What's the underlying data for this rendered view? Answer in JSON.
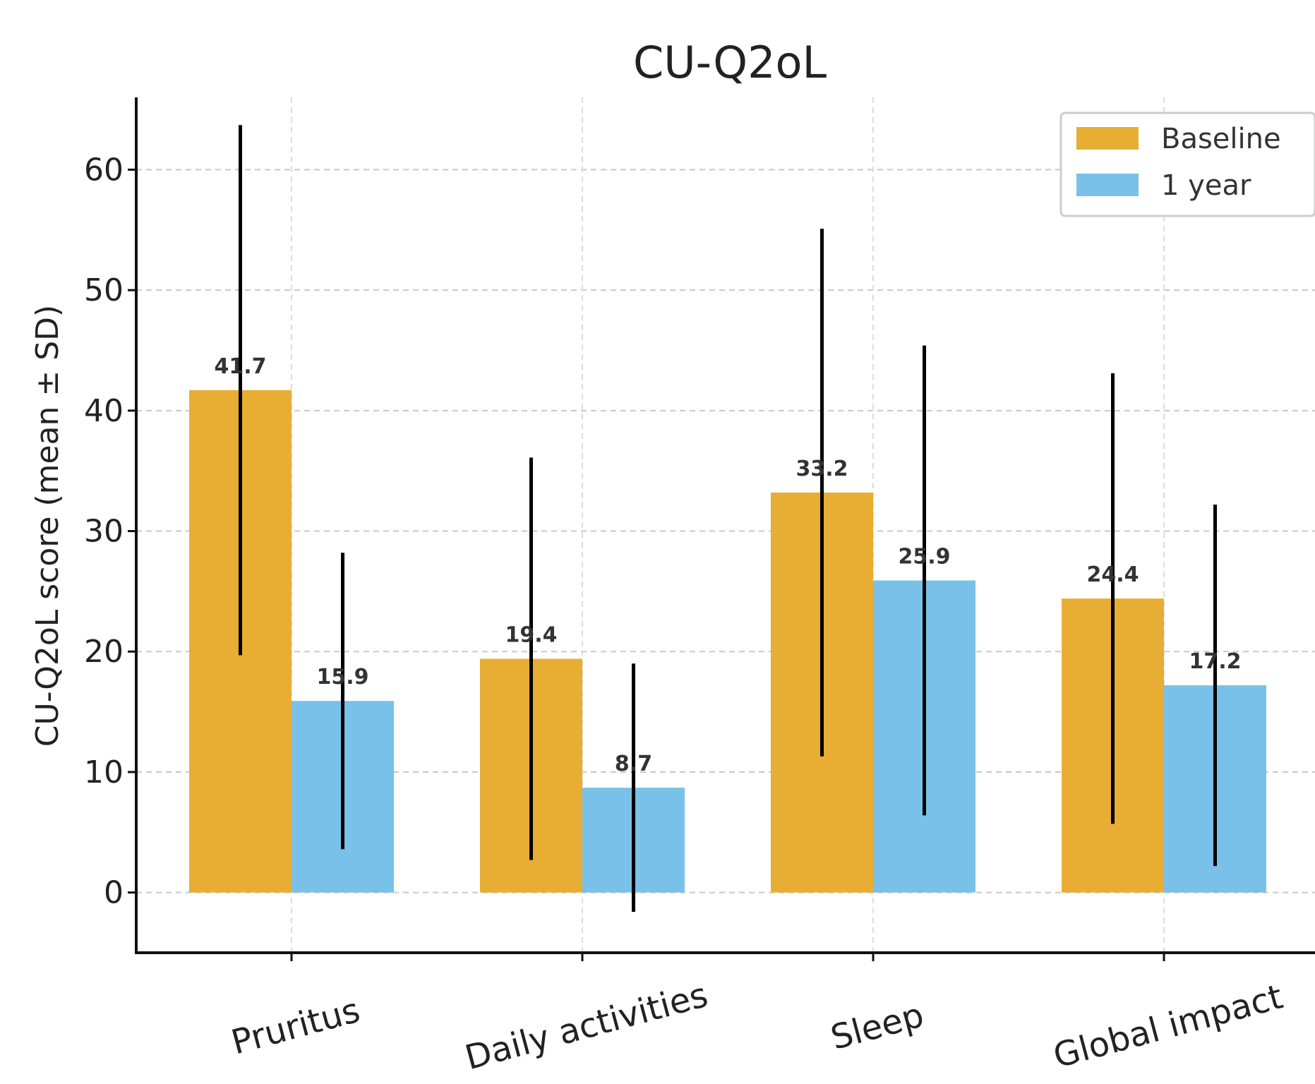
{
  "chart_data": {
    "type": "bar",
    "title": "CU-Q2oL",
    "xlabel": "",
    "ylabel": "CU-Q2oL score (mean ± SD)",
    "categories": [
      "Pruritus",
      "Daily activities",
      "Sleep",
      "Global impact"
    ],
    "series": [
      {
        "name": "Baseline",
        "color": "#E8AD33",
        "values": [
          41.7,
          19.4,
          33.2,
          24.4
        ],
        "sd": [
          22.0,
          16.7,
          21.9,
          18.7
        ],
        "labels": [
          "41.7",
          "19.4",
          "33.2",
          "24.4"
        ]
      },
      {
        "name": "1 year",
        "color": "#7AC1EA",
        "values": [
          15.9,
          8.7,
          25.9,
          17.2
        ],
        "sd": [
          12.3,
          10.3,
          19.5,
          15.0
        ],
        "labels": [
          "15.9",
          "8.7",
          "25.9",
          "17.2"
        ]
      }
    ],
    "ylim": [
      -5,
      66
    ],
    "yticks": [
      0,
      10,
      20,
      30,
      40,
      50,
      60
    ],
    "grid": true,
    "legend": "top-right"
  }
}
